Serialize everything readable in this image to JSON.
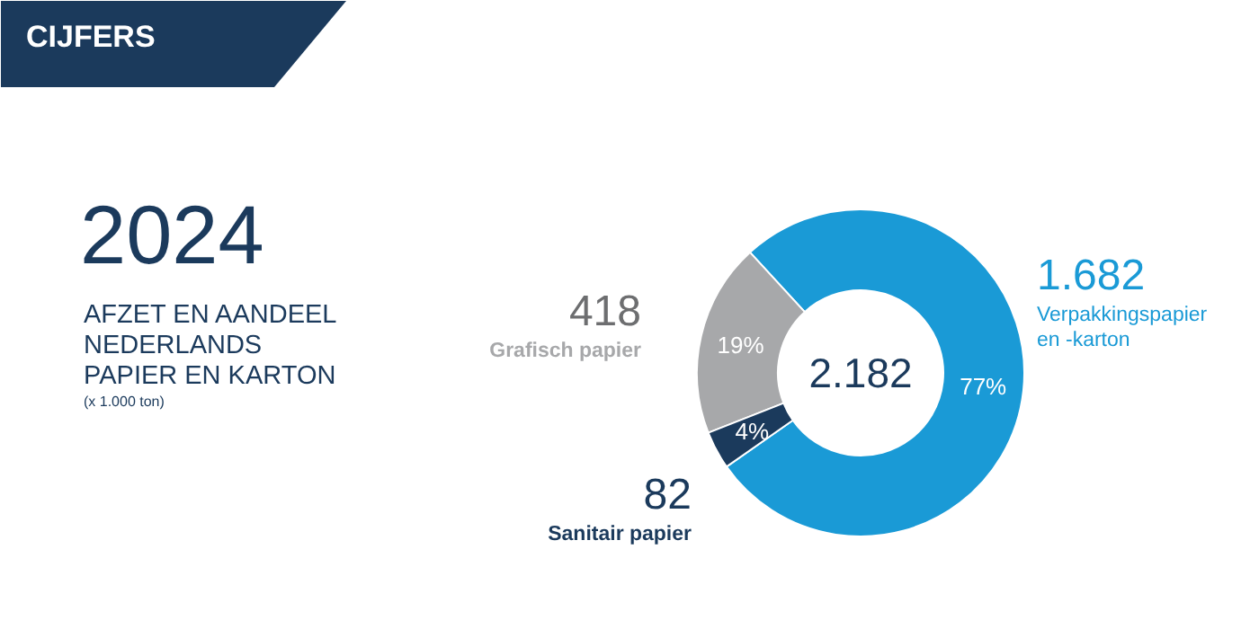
{
  "chart_data": {
    "type": "donut",
    "title": "CIJFERS",
    "subtitle": "2024",
    "categories": [
      "Verpakkingspapier en -karton",
      "Grafisch papier",
      "Sanitair papier"
    ],
    "values": [
      1682,
      418,
      82
    ],
    "colors": [
      "#1a9ad6",
      "#a7a8aa",
      "#1b3a5c"
    ],
    "value_labels": [
      "1.682",
      "418",
      "82"
    ],
    "annotations": [
      "AFZET EN AANDEEL NEDERLANDS PAPIER EN KARTON",
      "(x 1.000 ton)",
      "2.182",
      "77%",
      "19%",
      "4%"
    ]
  }
}
